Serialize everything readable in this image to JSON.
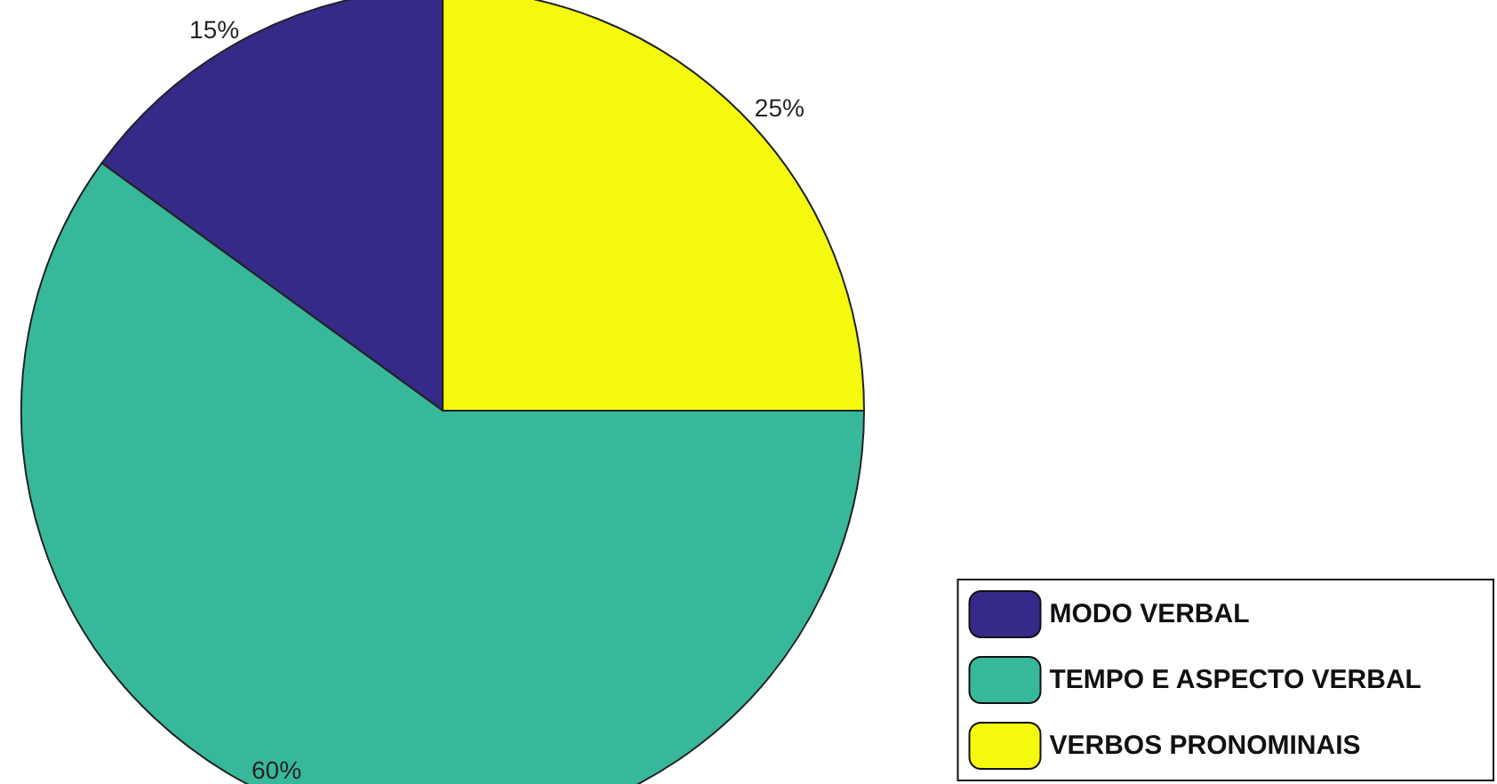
{
  "chart_data": {
    "type": "pie",
    "categories": [
      "MODO VERBAL",
      "TEMPO E ASPECTO VERBAL",
      "VERBOS PRONOMINAIS"
    ],
    "values": [
      15,
      60,
      25
    ],
    "colors": [
      "#352a87",
      "#38b89a",
      "#f5f90e"
    ],
    "value_labels": [
      "15%",
      "60%",
      "25%"
    ],
    "legend": "bottom right"
  }
}
